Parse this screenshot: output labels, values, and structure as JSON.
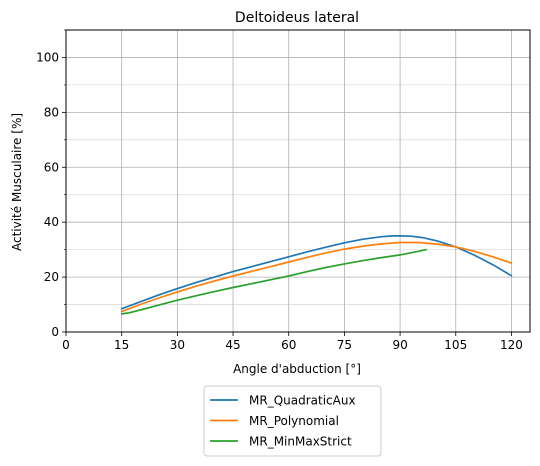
{
  "chart_data": {
    "type": "line",
    "title": "Deltoideus lateral",
    "xlabel": "Angle d'abduction [°]",
    "ylabel": "Activité Musculaire [%]",
    "xlim": [
      0,
      125
    ],
    "ylim": [
      0,
      110
    ],
    "xticks": [
      0,
      15,
      30,
      45,
      60,
      75,
      90,
      105,
      120
    ],
    "xtick_labels": [
      "0",
      "15",
      "30",
      "45",
      "60",
      "75",
      "90",
      "105",
      "120"
    ],
    "yticks": [
      0,
      20,
      40,
      60,
      80,
      100
    ],
    "ytick_labels": [
      "0",
      "20",
      "40",
      "60",
      "80",
      "100"
    ],
    "yminor_ticks": [
      10,
      30,
      50,
      70,
      90,
      110
    ],
    "grid": true,
    "legend_position": "below",
    "series": [
      {
        "name": "MR_QuadraticAux",
        "color": "#1f77b4",
        "x": [
          15,
          20,
          25,
          30,
          35,
          40,
          45,
          50,
          55,
          60,
          65,
          70,
          75,
          80,
          85,
          88,
          90,
          93,
          96,
          100,
          105,
          110,
          115,
          120
        ],
        "y": [
          8.5,
          11,
          13.5,
          15.8,
          18,
          20,
          22,
          23.8,
          25.6,
          27.4,
          29.2,
          30.9,
          32.5,
          33.8,
          34.7,
          35,
          35,
          34.9,
          34.4,
          33.2,
          31,
          28,
          24.5,
          20.5
        ]
      },
      {
        "name": "MR_Polynomial",
        "color": "#ff7f0e",
        "x": [
          15,
          20,
          25,
          30,
          35,
          40,
          45,
          50,
          55,
          60,
          65,
          70,
          75,
          80,
          85,
          90,
          95,
          100,
          105,
          110,
          115,
          120
        ],
        "y": [
          7.5,
          10,
          12.4,
          14.6,
          16.7,
          18.6,
          20.4,
          22.1,
          23.8,
          25.5,
          27.2,
          28.8,
          30.2,
          31.3,
          32.1,
          32.6,
          32.6,
          32,
          31,
          29.4,
          27.4,
          25.1
        ]
      },
      {
        "name": "MR_MinMaxStrict",
        "color": "#2ca02c",
        "x": [
          15,
          17,
          20,
          25,
          30,
          35,
          40,
          45,
          50,
          55,
          60,
          65,
          70,
          75,
          80,
          85,
          90,
          95,
          97
        ],
        "y": [
          6.6,
          7,
          8,
          9.8,
          11.6,
          13.2,
          14.7,
          16.2,
          17.6,
          19,
          20.4,
          22,
          23.5,
          24.8,
          26,
          27.1,
          28.1,
          29.4,
          30
        ]
      }
    ]
  }
}
